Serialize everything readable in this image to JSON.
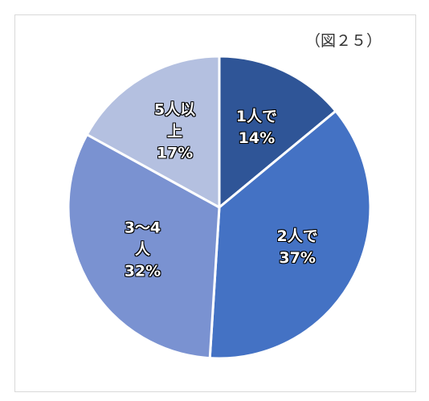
{
  "chart_data": {
    "type": "pie",
    "title": "（図２５）",
    "categories": [
      "1人で",
      "2人で",
      "3～4人",
      "5人以上"
    ],
    "values": [
      14,
      37,
      32,
      17
    ],
    "value_labels": [
      "14%",
      "37%",
      "32%",
      "17%"
    ],
    "colors": [
      "#2f5597",
      "#4472c4",
      "#7a92d1",
      "#b4c0e0"
    ]
  }
}
